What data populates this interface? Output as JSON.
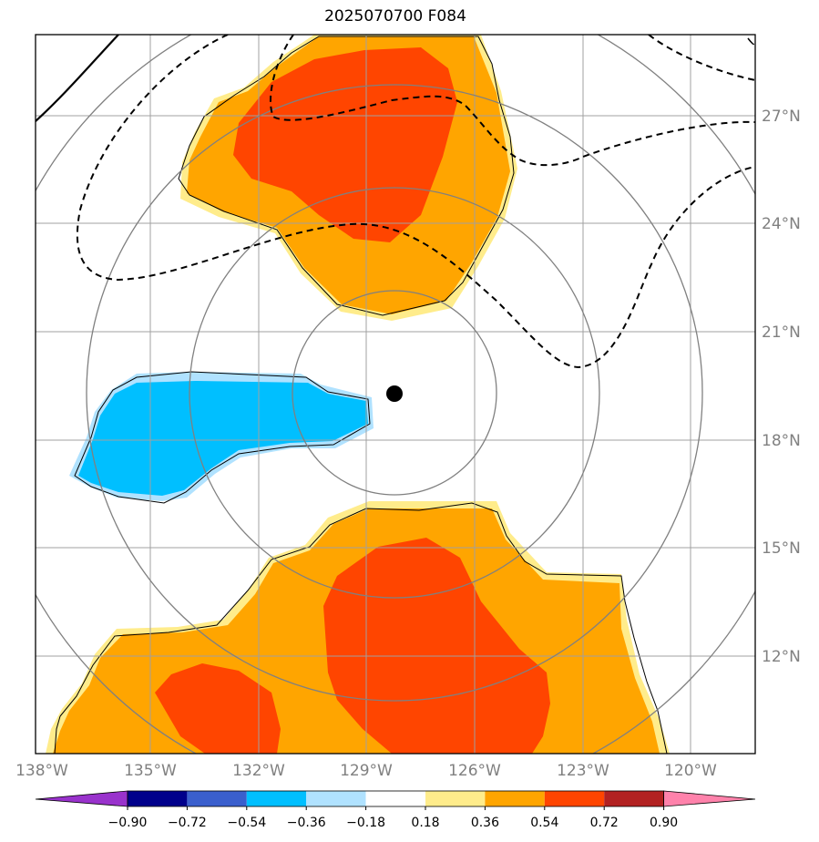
{
  "title": "2025070700 F084",
  "map": {
    "lat_labels": [
      "27°N",
      "24°N",
      "21°N",
      "18°N",
      "15°N",
      "12°N"
    ],
    "lon_labels": [
      "138°W",
      "135°W",
      "132°W",
      "129°W",
      "126°W",
      "123°W",
      "120°W"
    ],
    "storm_center": {
      "lat": "19.2",
      "lon": "-128.2"
    },
    "colors": {
      "positive_low": "#ffec8b",
      "positive_mid": "#ffa500",
      "positive_high": "#ff4500",
      "negative_low": "#b0e2ff",
      "negative_mid": "#00bfff",
      "grid": "#a0a0a0",
      "range_rings": "#808080"
    }
  },
  "colorbar": {
    "ticks": [
      "−0.90",
      "−0.72",
      "−0.54",
      "−0.36",
      "−0.18",
      "0.18",
      "0.36",
      "0.54",
      "0.72",
      "0.90"
    ],
    "colors": [
      "#9932cc",
      "#00008b",
      "#3a5fcd",
      "#00bfff",
      "#b0e2ff",
      "#ffffff",
      "#ffec8b",
      "#ffa500",
      "#ff4500",
      "#b22222",
      "#ff82ab"
    ]
  }
}
